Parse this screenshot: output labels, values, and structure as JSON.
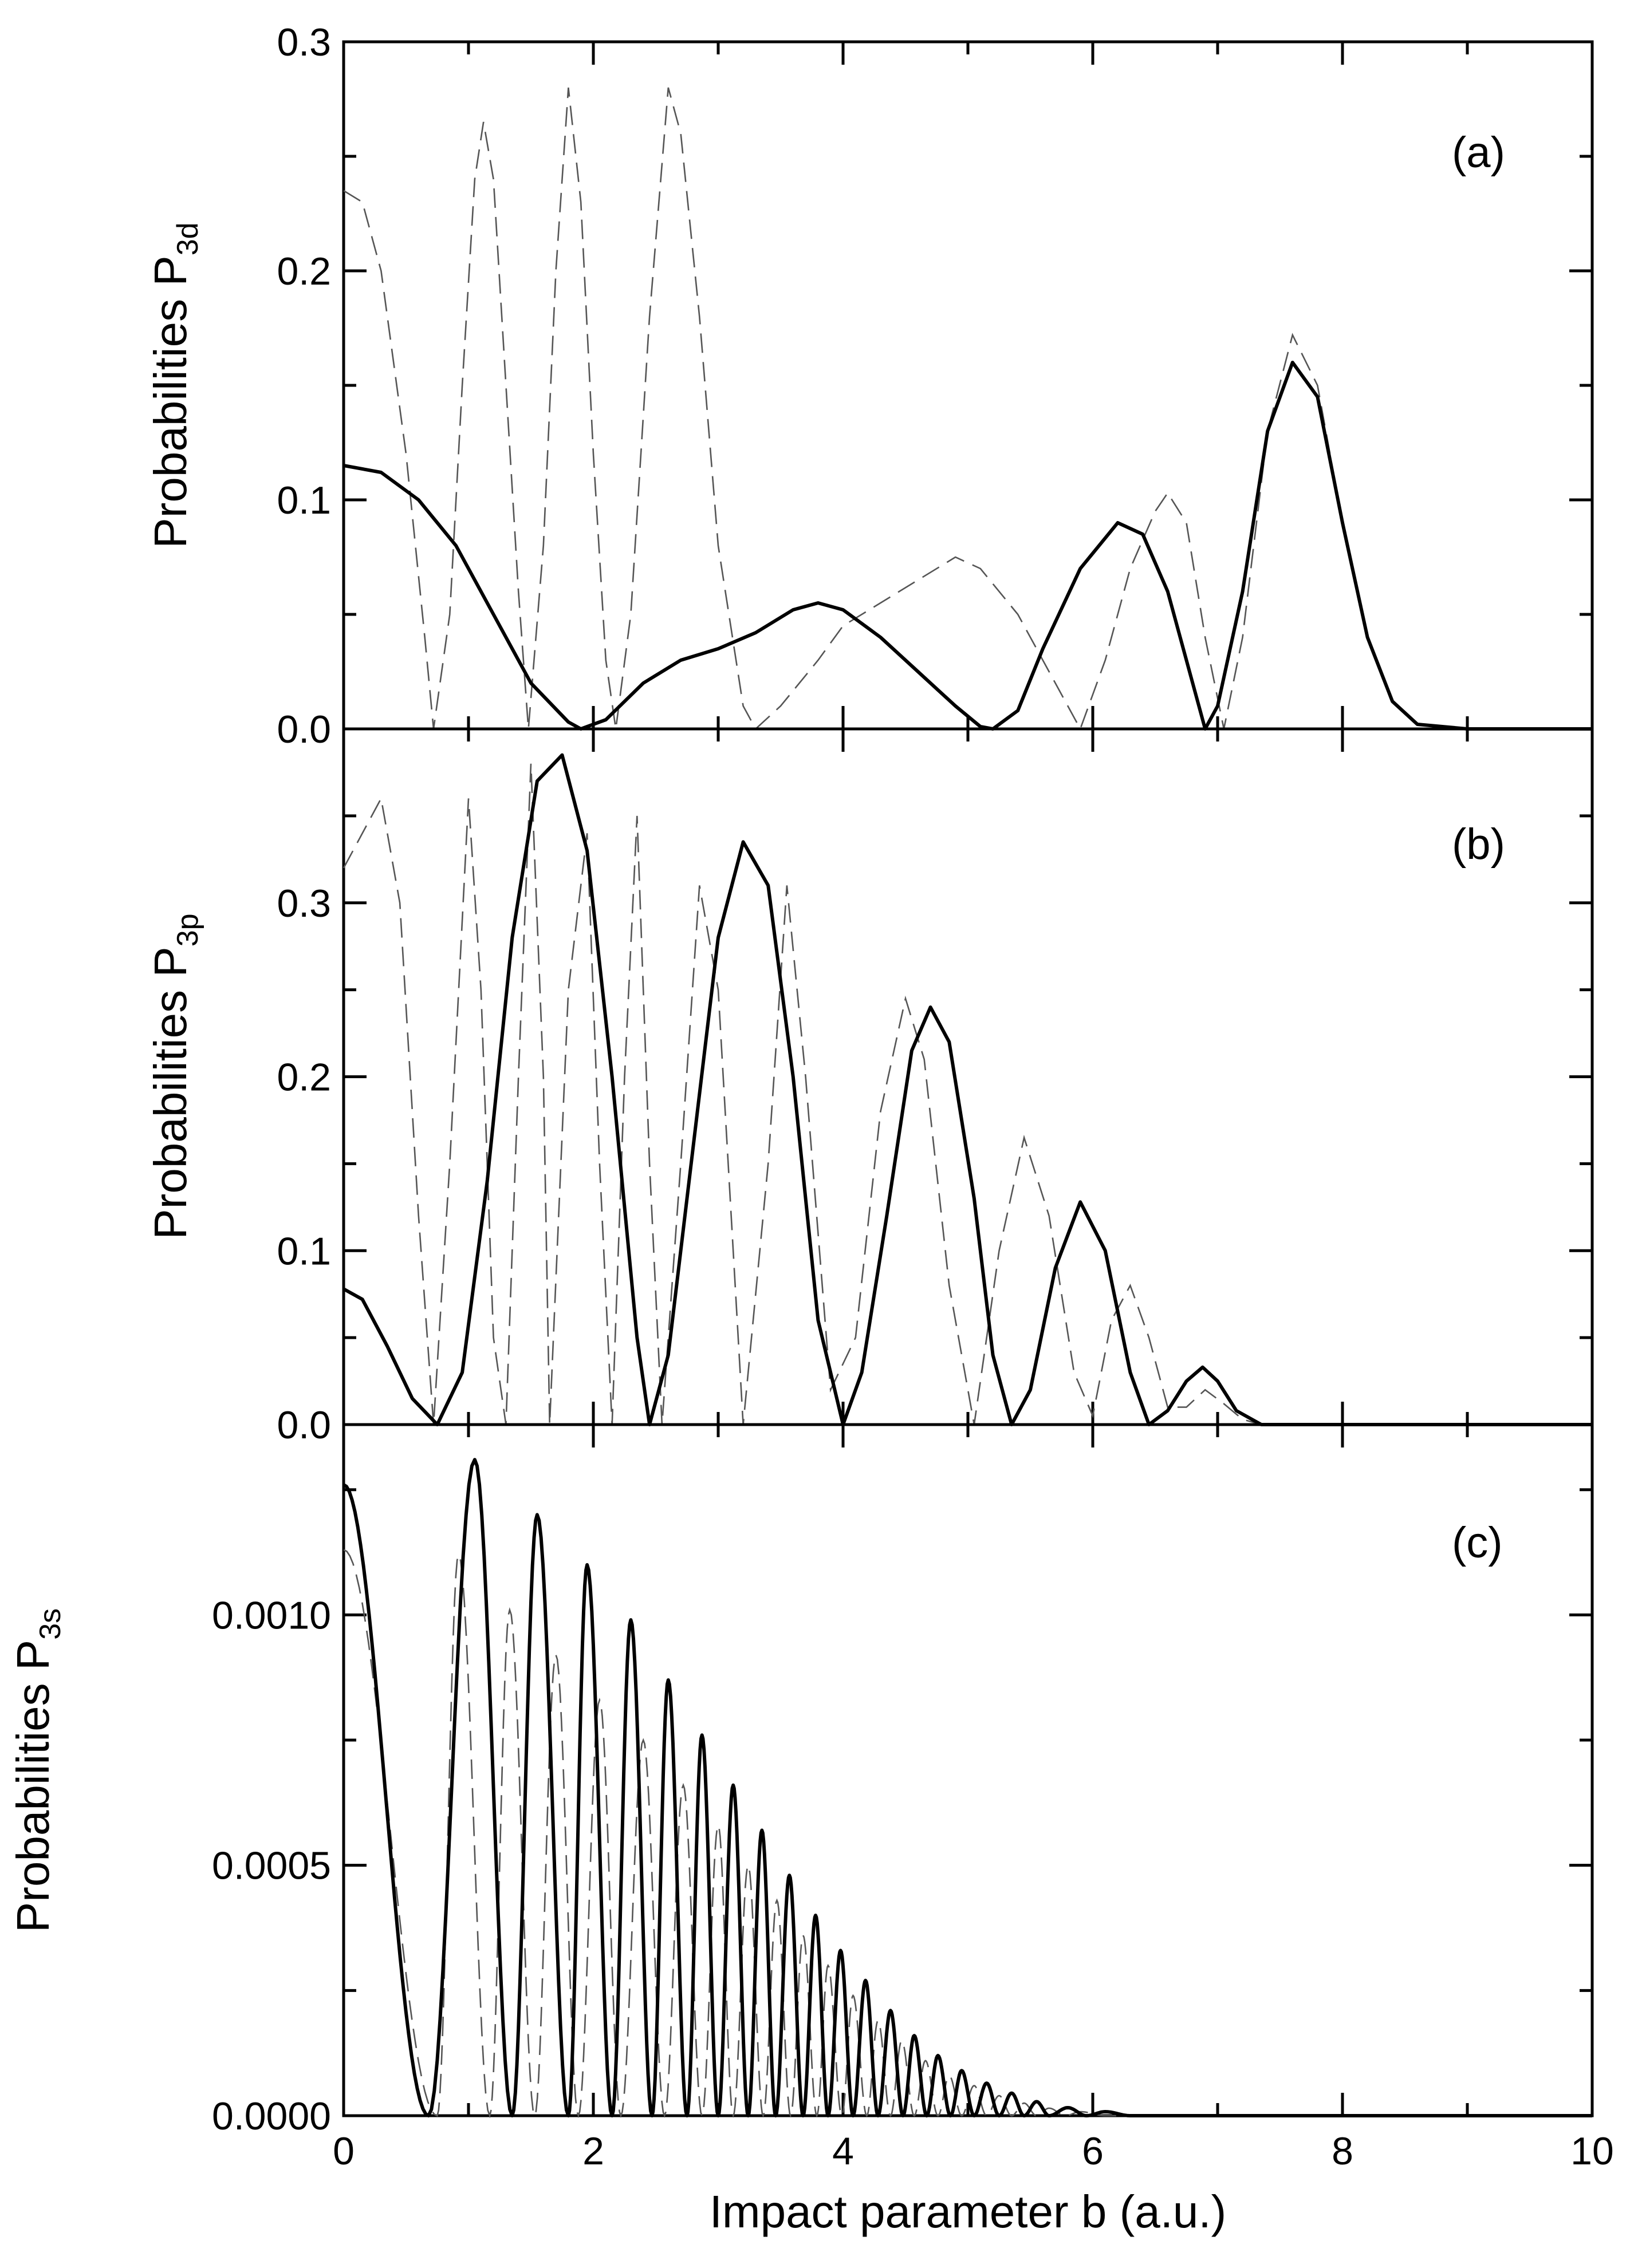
{
  "chart_data": [
    {
      "type": "line",
      "panel": "(a)",
      "ylabel_main": "Probabilities P",
      "ylabel_sub": "3d",
      "xlim": [
        0,
        10
      ],
      "ylim": [
        0,
        0.3
      ],
      "yticks": [
        "0.0",
        "0.1",
        "0.2",
        "0.3"
      ],
      "series": [
        {
          "name": "solid",
          "style": "solid",
          "points": [
            [
              0,
              0.115
            ],
            [
              0.3,
              0.112
            ],
            [
              0.6,
              0.1
            ],
            [
              0.9,
              0.08
            ],
            [
              1.2,
              0.05
            ],
            [
              1.5,
              0.02
            ],
            [
              1.8,
              0.003
            ],
            [
              1.9,
              0.0
            ],
            [
              2.1,
              0.004
            ],
            [
              2.4,
              0.02
            ],
            [
              2.7,
              0.03
            ],
            [
              3.0,
              0.035
            ],
            [
              3.3,
              0.042
            ],
            [
              3.6,
              0.052
            ],
            [
              3.8,
              0.055
            ],
            [
              4.0,
              0.052
            ],
            [
              4.3,
              0.04
            ],
            [
              4.6,
              0.025
            ],
            [
              4.9,
              0.01
            ],
            [
              5.1,
              0.001
            ],
            [
              5.2,
              0.0
            ],
            [
              5.4,
              0.008
            ],
            [
              5.6,
              0.035
            ],
            [
              5.9,
              0.07
            ],
            [
              6.2,
              0.09
            ],
            [
              6.4,
              0.085
            ],
            [
              6.6,
              0.06
            ],
            [
              6.8,
              0.02
            ],
            [
              6.9,
              0.0
            ],
            [
              7.0,
              0.01
            ],
            [
              7.2,
              0.06
            ],
            [
              7.4,
              0.13
            ],
            [
              7.6,
              0.16
            ],
            [
              7.8,
              0.145
            ],
            [
              8.0,
              0.09
            ],
            [
              8.2,
              0.04
            ],
            [
              8.4,
              0.012
            ],
            [
              8.6,
              0.002
            ],
            [
              9.0,
              0.0
            ],
            [
              10.0,
              0.0
            ]
          ]
        },
        {
          "name": "dashed",
          "style": "dashed",
          "points": [
            [
              0,
              0.235
            ],
            [
              0.15,
              0.23
            ],
            [
              0.3,
              0.2
            ],
            [
              0.5,
              0.12
            ],
            [
              0.65,
              0.04
            ],
            [
              0.72,
              0.0
            ],
            [
              0.85,
              0.05
            ],
            [
              0.95,
              0.15
            ],
            [
              1.05,
              0.24
            ],
            [
              1.12,
              0.265
            ],
            [
              1.2,
              0.24
            ],
            [
              1.3,
              0.15
            ],
            [
              1.4,
              0.06
            ],
            [
              1.48,
              0.0
            ],
            [
              1.6,
              0.08
            ],
            [
              1.7,
              0.2
            ],
            [
              1.8,
              0.28
            ],
            [
              1.9,
              0.23
            ],
            [
              2.0,
              0.12
            ],
            [
              2.1,
              0.03
            ],
            [
              2.18,
              0.0
            ],
            [
              2.3,
              0.05
            ],
            [
              2.45,
              0.18
            ],
            [
              2.6,
              0.28
            ],
            [
              2.7,
              0.26
            ],
            [
              2.85,
              0.18
            ],
            [
              3.0,
              0.08
            ],
            [
              3.2,
              0.01
            ],
            [
              3.3,
              0.0
            ],
            [
              3.5,
              0.01
            ],
            [
              3.8,
              0.03
            ],
            [
              4.0,
              0.045
            ],
            [
              4.3,
              0.055
            ],
            [
              4.6,
              0.065
            ],
            [
              4.9,
              0.075
            ],
            [
              5.1,
              0.07
            ],
            [
              5.4,
              0.05
            ],
            [
              5.7,
              0.02
            ],
            [
              5.9,
              0.0
            ],
            [
              6.1,
              0.03
            ],
            [
              6.3,
              0.07
            ],
            [
              6.5,
              0.095
            ],
            [
              6.6,
              0.103
            ],
            [
              6.75,
              0.09
            ],
            [
              6.9,
              0.04
            ],
            [
              7.05,
              0.0
            ],
            [
              7.2,
              0.04
            ],
            [
              7.4,
              0.13
            ],
            [
              7.6,
              0.172
            ],
            [
              7.8,
              0.15
            ],
            [
              8.0,
              0.09
            ],
            [
              8.2,
              0.04
            ],
            [
              8.4,
              0.012
            ],
            [
              8.6,
              0.002
            ],
            [
              9.0,
              0.0
            ],
            [
              10.0,
              0.0
            ]
          ]
        }
      ]
    },
    {
      "type": "line",
      "panel": "(b)",
      "ylabel_main": "Probabilities P",
      "ylabel_sub": "3p",
      "xlim": [
        0,
        10
      ],
      "ylim": [
        0,
        0.4
      ],
      "yticks": [
        "0.0",
        "0.1",
        "0.2",
        "0.3"
      ],
      "series": [
        {
          "name": "solid",
          "style": "solid",
          "points": [
            [
              0,
              0.078
            ],
            [
              0.15,
              0.072
            ],
            [
              0.35,
              0.045
            ],
            [
              0.55,
              0.015
            ],
            [
              0.75,
              0.0
            ],
            [
              0.95,
              0.03
            ],
            [
              1.15,
              0.14
            ],
            [
              1.35,
              0.28
            ],
            [
              1.55,
              0.37
            ],
            [
              1.75,
              0.385
            ],
            [
              1.95,
              0.33
            ],
            [
              2.15,
              0.2
            ],
            [
              2.35,
              0.05
            ],
            [
              2.45,
              0.0
            ],
            [
              2.6,
              0.04
            ],
            [
              2.8,
              0.16
            ],
            [
              3.0,
              0.28
            ],
            [
              3.2,
              0.335
            ],
            [
              3.4,
              0.31
            ],
            [
              3.6,
              0.2
            ],
            [
              3.8,
              0.06
            ],
            [
              4.0,
              0.0
            ],
            [
              4.15,
              0.03
            ],
            [
              4.35,
              0.12
            ],
            [
              4.55,
              0.215
            ],
            [
              4.7,
              0.24
            ],
            [
              4.85,
              0.22
            ],
            [
              5.05,
              0.13
            ],
            [
              5.2,
              0.04
            ],
            [
              5.35,
              0.0
            ],
            [
              5.5,
              0.02
            ],
            [
              5.7,
              0.09
            ],
            [
              5.9,
              0.128
            ],
            [
              6.1,
              0.1
            ],
            [
              6.3,
              0.03
            ],
            [
              6.45,
              0.0
            ],
            [
              6.6,
              0.008
            ],
            [
              6.75,
              0.025
            ],
            [
              6.88,
              0.033
            ],
            [
              7.0,
              0.025
            ],
            [
              7.15,
              0.008
            ],
            [
              7.35,
              0.0
            ],
            [
              10.0,
              0.0
            ]
          ]
        },
        {
          "name": "dashed",
          "style": "dashed",
          "points": [
            [
              0,
              0.32
            ],
            [
              0.15,
              0.34
            ],
            [
              0.3,
              0.36
            ],
            [
              0.45,
              0.3
            ],
            [
              0.6,
              0.12
            ],
            [
              0.72,
              0.0
            ],
            [
              0.85,
              0.15
            ],
            [
              1.0,
              0.36
            ],
            [
              1.1,
              0.25
            ],
            [
              1.2,
              0.05
            ],
            [
              1.3,
              0.0
            ],
            [
              1.4,
              0.2
            ],
            [
              1.5,
              0.38
            ],
            [
              1.6,
              0.2
            ],
            [
              1.65,
              0.0
            ],
            [
              1.8,
              0.25
            ],
            [
              1.95,
              0.34
            ],
            [
              2.05,
              0.15
            ],
            [
              2.15,
              0.0
            ],
            [
              2.25,
              0.2
            ],
            [
              2.35,
              0.35
            ],
            [
              2.45,
              0.15
            ],
            [
              2.55,
              0.0
            ],
            [
              2.7,
              0.15
            ],
            [
              2.85,
              0.31
            ],
            [
              3.0,
              0.25
            ],
            [
              3.2,
              0.0
            ],
            [
              3.4,
              0.15
            ],
            [
              3.55,
              0.31
            ],
            [
              3.7,
              0.2
            ],
            [
              3.9,
              0.02
            ],
            [
              4.1,
              0.05
            ],
            [
              4.3,
              0.18
            ],
            [
              4.5,
              0.245
            ],
            [
              4.65,
              0.21
            ],
            [
              4.85,
              0.08
            ],
            [
              5.05,
              0.0
            ],
            [
              5.25,
              0.1
            ],
            [
              5.45,
              0.165
            ],
            [
              5.65,
              0.12
            ],
            [
              5.85,
              0.03
            ],
            [
              6.0,
              0.005
            ],
            [
              6.15,
              0.06
            ],
            [
              6.3,
              0.08
            ],
            [
              6.45,
              0.05
            ],
            [
              6.6,
              0.01
            ],
            [
              6.75,
              0.01
            ],
            [
              6.9,
              0.02
            ],
            [
              7.05,
              0.012
            ],
            [
              7.2,
              0.003
            ],
            [
              7.35,
              0.0
            ],
            [
              10.0,
              0.0
            ]
          ]
        }
      ]
    },
    {
      "type": "line",
      "panel": "(c)",
      "ylabel_main": "Probabilities P",
      "ylabel_sub": "3s",
      "xlim": [
        0,
        10
      ],
      "ylim": [
        0,
        0.00138
      ],
      "yticks": [
        "0.0000",
        "0.0005",
        "0.0010"
      ],
      "xticks": [
        "0",
        "2",
        "4",
        "6",
        "8",
        "10"
      ],
      "xlabel": "Impact parameter b (a.u.)",
      "series": [
        {
          "name": "solid",
          "style": "solid",
          "oscillatory": true,
          "start": 0.00126,
          "dip": 0.68,
          "peaks": [
            [
              1.05,
              0.00131
            ],
            [
              1.55,
              0.0012
            ],
            [
              1.95,
              0.0011
            ],
            [
              2.3,
              0.00099
            ],
            [
              2.6,
              0.00087
            ],
            [
              2.87,
              0.00076
            ],
            [
              3.12,
              0.00066
            ],
            [
              3.35,
              0.00057
            ],
            [
              3.57,
              0.00048
            ],
            [
              3.78,
              0.0004
            ],
            [
              3.98,
              0.00033
            ],
            [
              4.18,
              0.00027
            ],
            [
              4.38,
              0.00021
            ],
            [
              4.57,
              0.00016
            ],
            [
              4.76,
              0.00012
            ],
            [
              4.95,
              9e-05
            ],
            [
              5.15,
              6.5e-05
            ],
            [
              5.35,
              4.5e-05
            ],
            [
              5.55,
              2.8e-05
            ],
            [
              5.8,
              1.6e-05
            ],
            [
              6.1,
              8e-06
            ]
          ],
          "zeros": [
            0.68,
            1.35,
            1.8,
            2.15,
            2.47,
            2.75,
            3.0,
            3.24,
            3.46,
            3.68,
            3.88,
            4.08,
            4.28,
            4.48,
            4.67,
            4.86,
            5.05,
            5.25,
            5.45,
            5.65,
            5.95,
            6.3
          ]
        },
        {
          "name": "dashed",
          "style": "dashed",
          "oscillatory": true,
          "start": 0.00113,
          "dip": 0.75,
          "peaks": [
            [
              0.92,
              0.00112
            ],
            [
              1.33,
              0.00101
            ],
            [
              1.7,
              0.00092
            ],
            [
              2.05,
              0.00083
            ],
            [
              2.4,
              0.00075
            ],
            [
              2.72,
              0.00066
            ],
            [
              3.0,
              0.00058
            ],
            [
              3.24,
              0.0005
            ],
            [
              3.47,
              0.00043
            ],
            [
              3.68,
              0.00036
            ],
            [
              3.88,
              0.0003
            ],
            [
              4.08,
              0.00024
            ],
            [
              4.28,
              0.00019
            ],
            [
              4.47,
              0.00015
            ],
            [
              4.66,
              0.00011
            ],
            [
              4.85,
              8e-05
            ],
            [
              5.05,
              6e-05
            ],
            [
              5.25,
              4e-05
            ],
            [
              5.45,
              2.5e-05
            ],
            [
              5.65,
              1.5e-05
            ],
            [
              5.9,
              8e-06
            ]
          ],
          "zeros": [
            0.75,
            1.17,
            1.53,
            1.88,
            2.22,
            2.57,
            2.87,
            3.12,
            3.36,
            3.58,
            3.79,
            3.99,
            4.19,
            4.38,
            4.57,
            4.76,
            4.95,
            5.15,
            5.35,
            5.55,
            5.78,
            6.1
          ]
        }
      ]
    }
  ]
}
